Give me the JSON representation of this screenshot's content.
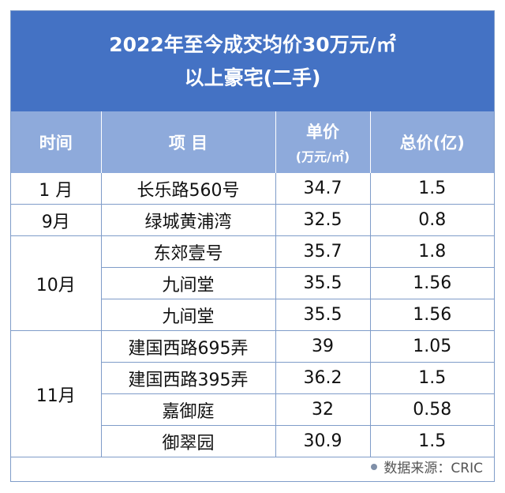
{
  "title": {
    "line1": "2022年至今成交均价30万元/㎡",
    "line2": "以上豪宅(二手)"
  },
  "headers": {
    "time": "时间",
    "project": "项 目",
    "unit_price": "单价",
    "unit_price_unit": "(万元/㎡)",
    "total_price": "总价(亿)"
  },
  "rows": [
    {
      "month": "1 月",
      "project": "长乐路560号",
      "unit_price": "34.7",
      "total": "1.5"
    },
    {
      "month": "9月",
      "project": "绿城黄浦湾",
      "unit_price": "32.5",
      "total": "0.8"
    },
    {
      "month": "10月",
      "project": "东郊壹号",
      "unit_price": "35.7",
      "total": "1.8"
    },
    {
      "month": "",
      "project": "九间堂",
      "unit_price": "35.5",
      "total": "1.56"
    },
    {
      "month": "",
      "project": "九间堂",
      "unit_price": "35.5",
      "total": "1.56"
    },
    {
      "month": "11月",
      "project": "建国西路695弄",
      "unit_price": "39",
      "total": "1.05"
    },
    {
      "month": "",
      "project": "建国西路395弄",
      "unit_price": "36.2",
      "total": "1.5"
    },
    {
      "month": "",
      "project": "嘉御庭",
      "unit_price": "32",
      "total": "0.58"
    },
    {
      "month": "",
      "project": "御翠园",
      "unit_price": "30.9",
      "total": "1.5"
    }
  ],
  "source": "数据来源：CRIC",
  "colors": {
    "title_bg": "#4472c4",
    "header_bg": "#8eaadb",
    "border": "#7f9cc9"
  }
}
